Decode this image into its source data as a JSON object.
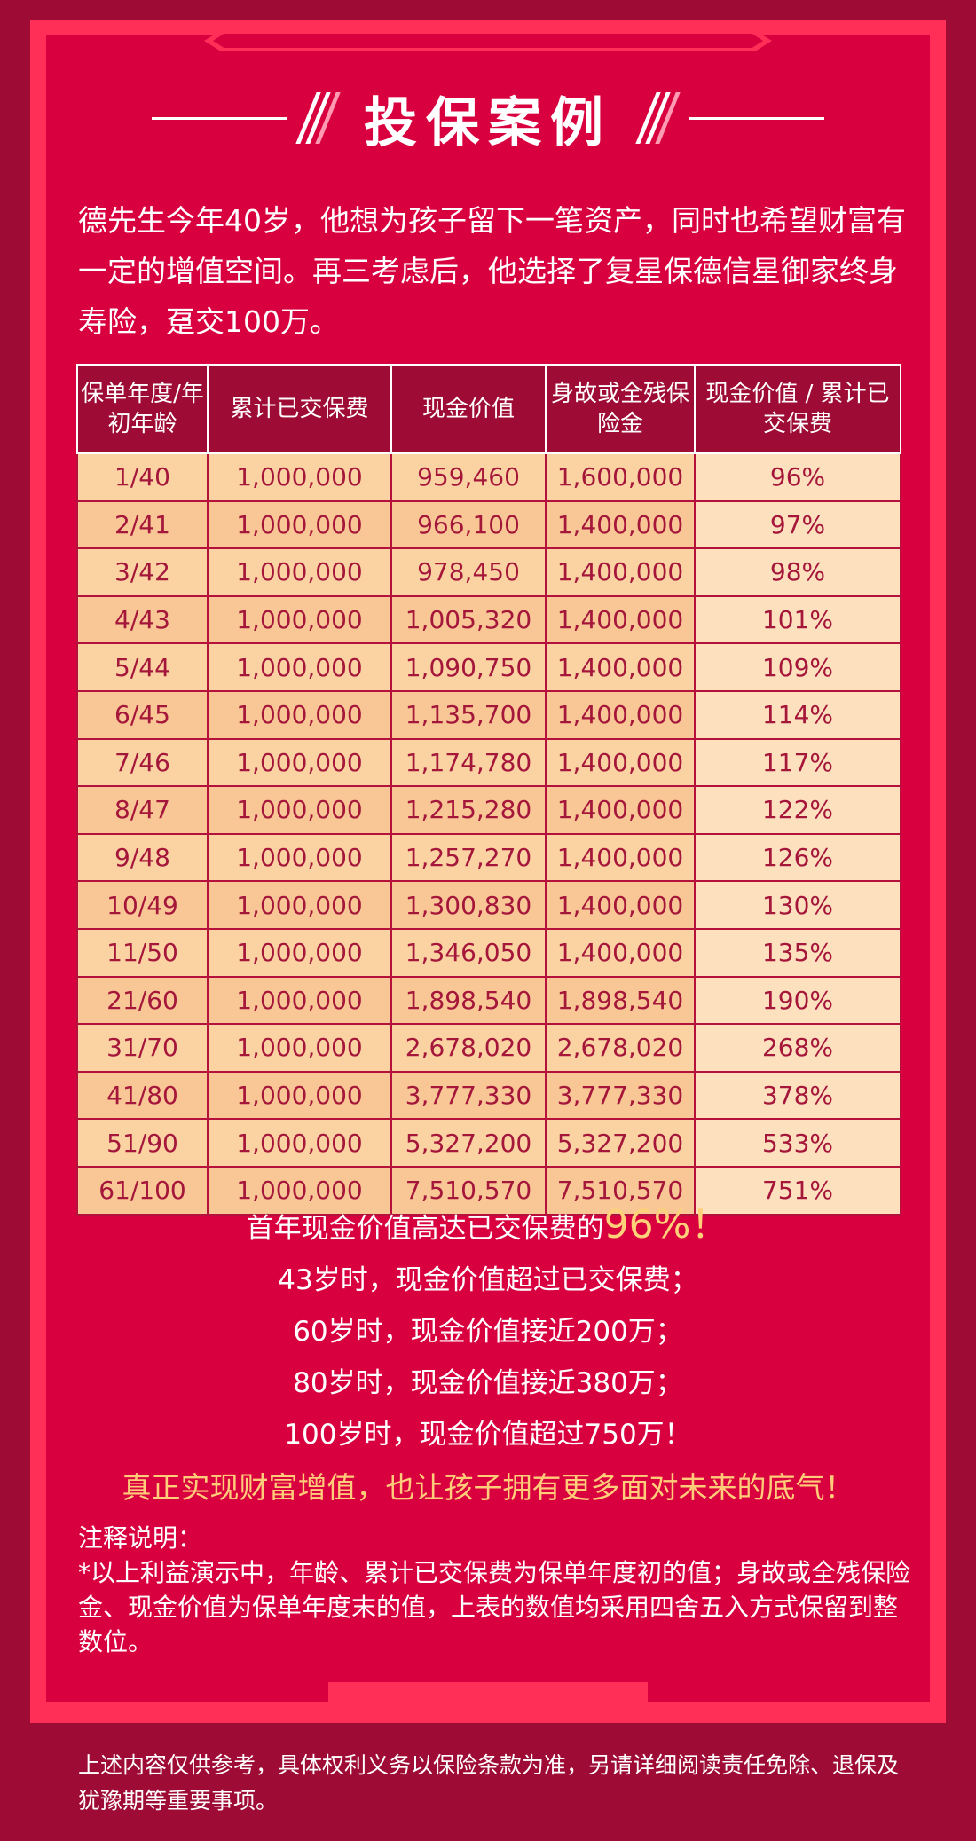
{
  "title": "投保案例",
  "intro": "德先生今年40岁，他想为孩子留下一笔资产，同时也希望财富有一定的增值空间。再三考虑后，他选择了复星保德信星御家终身寿险，趸交100万。",
  "table": {
    "headers": [
      "保单年度/年初年龄",
      "累计已交保费",
      "现金价值",
      "身故或全残保险金",
      "现金价值 / 累计已交保费"
    ],
    "rows": [
      [
        "1/40",
        "1,000,000",
        "959,460",
        "1,600,000",
        "96%"
      ],
      [
        "2/41",
        "1,000,000",
        "966,100",
        "1,400,000",
        "97%"
      ],
      [
        "3/42",
        "1,000,000",
        "978,450",
        "1,400,000",
        "98%"
      ],
      [
        "4/43",
        "1,000,000",
        "1,005,320",
        "1,400,000",
        "101%"
      ],
      [
        "5/44",
        "1,000,000",
        "1,090,750",
        "1,400,000",
        "109%"
      ],
      [
        "6/45",
        "1,000,000",
        "1,135,700",
        "1,400,000",
        "114%"
      ],
      [
        "7/46",
        "1,000,000",
        "1,174,780",
        "1,400,000",
        "117%"
      ],
      [
        "8/47",
        "1,000,000",
        "1,215,280",
        "1,400,000",
        "122%"
      ],
      [
        "9/48",
        "1,000,000",
        "1,257,270",
        "1,400,000",
        "126%"
      ],
      [
        "10/49",
        "1,000,000",
        "1,300,830",
        "1,400,000",
        "130%"
      ],
      [
        "11/50",
        "1,000,000",
        "1,346,050",
        "1,400,000",
        "135%"
      ],
      [
        "21/60",
        "1,000,000",
        "1,898,540",
        "1,898,540",
        "190%"
      ],
      [
        "31/70",
        "1,000,000",
        "2,678,020",
        "2,678,020",
        "268%"
      ],
      [
        "41/80",
        "1,000,000",
        "3,777,330",
        "3,777,330",
        "378%"
      ],
      [
        "51/90",
        "1,000,000",
        "5,327,200",
        "5,327,200",
        "533%"
      ],
      [
        "61/100",
        "1,000,000",
        "7,510,570",
        "7,510,570",
        "751%"
      ]
    ]
  },
  "summary": {
    "line1_prefix": "首年现金价值高达已交保费的",
    "line1_highlight": "96%！",
    "line2": "43岁时，现金价值超过已交保费；",
    "line3": "60岁时，现金价值接近200万；",
    "line4": "80岁时，现金价值接近380万；",
    "line5": "100岁时，现金价值超过750万！",
    "slogan": "真正实现财富增值，也让孩子拥有更多面对未来的底气！"
  },
  "notes": {
    "heading": "注释说明：",
    "body": "*以上利益演示中，年龄、累计已交保费为保单年度初的值；身故或全残保险金、现金价值为保单年度末的值，上表的数值均采用四舍五入方式保留到整数位。"
  },
  "disclaimer": "上述内容仅供参考，具体权利义务以保险条款为准，另请详细阅读责任免除、退保及犹豫期等重要事项。",
  "colors": {
    "background": "#9e0b34",
    "frame": "#ff2f58",
    "panel": "#d9003f",
    "header_cell": "#9e0b34",
    "cell": "#fbd3a3",
    "cell_text": "#a5163b",
    "highlight": "#ffcc7a"
  }
}
